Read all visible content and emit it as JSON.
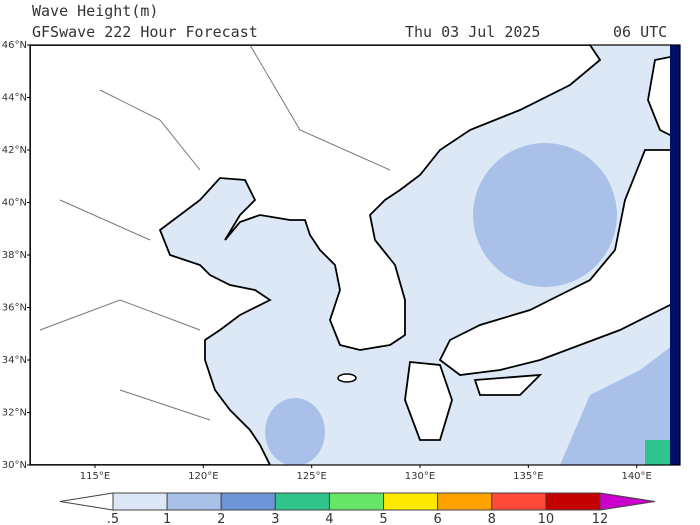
{
  "header": {
    "title": "Wave Height(m)",
    "subtitle": "GFSwave 222 Hour Forecast",
    "date": "Thu 03 Jul 2025",
    "time": "06 UTC"
  },
  "map": {
    "lon_range": [
      112,
      142
    ],
    "lat_range": [
      30,
      46
    ],
    "lat_ticks": [
      {
        "value": 46,
        "label": "46°N"
      },
      {
        "value": 44,
        "label": "44°N"
      },
      {
        "value": 42,
        "label": "42°N"
      },
      {
        "value": 40,
        "label": "40°N"
      },
      {
        "value": 38,
        "label": "38°N"
      },
      {
        "value": 36,
        "label": "36°N"
      },
      {
        "value": 34,
        "label": "34°N"
      },
      {
        "value": 32,
        "label": "32°N"
      },
      {
        "value": 30,
        "label": "30°N"
      }
    ],
    "lon_ticks": [
      {
        "value": 115,
        "label": "115°E"
      },
      {
        "value": 120,
        "label": "120°E"
      },
      {
        "value": 125,
        "label": "125°E"
      },
      {
        "value": 130,
        "label": "130°E"
      },
      {
        "value": 135,
        "label": "135°E"
      },
      {
        "value": 140,
        "label": "140°E"
      }
    ]
  },
  "colorbar": {
    "levels": [
      {
        "value": 0.5,
        "label": ".5"
      },
      1,
      2,
      3,
      4,
      5,
      6,
      8,
      10,
      12
    ],
    "colors": [
      "#ffffff",
      "#dce8f5",
      "#a9c1e9",
      "#6d94d6",
      "#2ec48c",
      "#66e566",
      "#ffe800",
      "#ffa200",
      "#ff4a3a",
      "#c40000",
      "#cc00cc"
    ]
  }
}
